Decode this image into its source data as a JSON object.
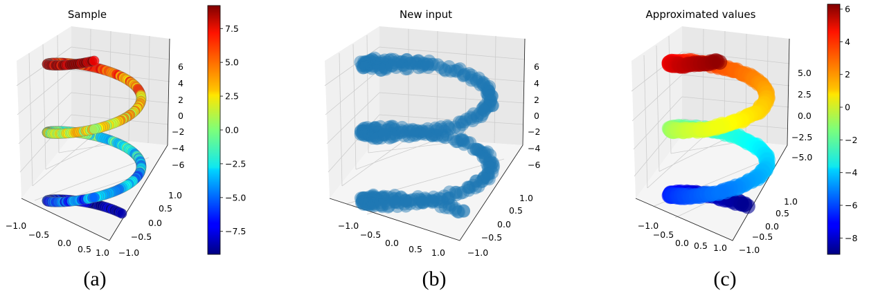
{
  "chart_data": [
    {
      "type": "scatter",
      "title": "Sample",
      "caption": "(a)",
      "colormap": "jet",
      "colored": true,
      "x_ticks": [
        "−1.0",
        "−0.5",
        "0.0",
        "0.5",
        "1.0"
      ],
      "y_ticks": [
        "1.0",
        "0.5",
        "0.0",
        "−0.5",
        "−1.0"
      ],
      "z_ticks": [
        "6",
        "4",
        "2",
        "0",
        "−2",
        "−4",
        "−6"
      ],
      "z_range": [
        -7,
        7
      ],
      "colorbar": {
        "ticks": [
          "7.5",
          "5.0",
          "2.5",
          "0.0",
          "−2.5",
          "−5.0",
          "−7.5"
        ],
        "range": [
          -9.2,
          9.2
        ]
      }
    },
    {
      "type": "scatter",
      "title": "New input",
      "caption": "(b)",
      "color": "#1f77b4",
      "colored": false,
      "x_ticks": [
        "−1.0",
        "−0.5",
        "0.0",
        "0.5",
        "1.0"
      ],
      "y_ticks": [
        "1.0",
        "0.5",
        "0.0",
        "−0.5",
        "−1.0"
      ],
      "z_ticks": [
        "6",
        "4",
        "2",
        "0",
        "−2",
        "−4",
        "−6"
      ],
      "z_range": [
        -7,
        7
      ]
    },
    {
      "type": "scatter",
      "title": "Approximated values",
      "caption": "(c)",
      "colormap": "jet",
      "colored": true,
      "x_ticks": [
        "−1.0",
        "−0.5",
        "0.0",
        "0.5",
        "1.0"
      ],
      "y_ticks": [
        "1.0",
        "0.5",
        "0.0",
        "−0.5",
        "−1.0"
      ],
      "z_ticks": [
        "5.0",
        "2.5",
        "0.0",
        "−2.5",
        "−5.0"
      ],
      "z_range": [
        -7,
        7
      ],
      "colorbar": {
        "ticks": [
          "6",
          "4",
          "2",
          "0",
          "−2",
          "−4",
          "−6",
          "−8"
        ],
        "range": [
          -9,
          6.3
        ]
      }
    }
  ]
}
